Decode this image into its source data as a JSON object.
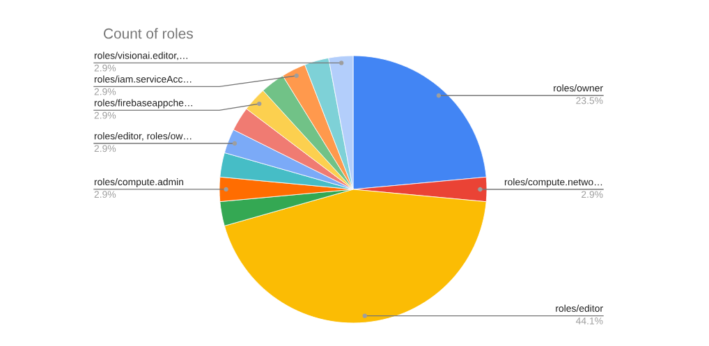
{
  "chart_data": {
    "type": "pie",
    "title": "Count of roles",
    "categories": [
      "roles/owner",
      "roles/compute.netwo…",
      "roles/editor",
      null,
      "roles/compute.admin",
      null,
      "roles/editor, roles/ow…",
      null,
      "roles/firebaseappche…",
      null,
      "roles/iam.serviceAcc…",
      null,
      "roles/visionai.editor,…"
    ],
    "values": [
      23.53,
      2.94,
      44.12,
      2.94,
      2.94,
      2.94,
      2.94,
      2.94,
      2.94,
      2.94,
      2.94,
      2.94,
      2.94
    ],
    "value_labels": [
      "23.5%",
      "2.9%",
      "44.1%",
      null,
      "2.9%",
      null,
      "2.9%",
      null,
      "2.9%",
      null,
      "2.9%",
      null,
      "2.9%"
    ],
    "colors": [
      "#4285f4",
      "#ea4335",
      "#fbbc04",
      "#34a853",
      "#ff6d01",
      "#46bdc6",
      "#7baaf7",
      "#f07b72",
      "#fcd04f",
      "#71c287",
      "#ff994d",
      "#7ed1d7",
      "#b3cefb"
    ],
    "legend": false
  }
}
